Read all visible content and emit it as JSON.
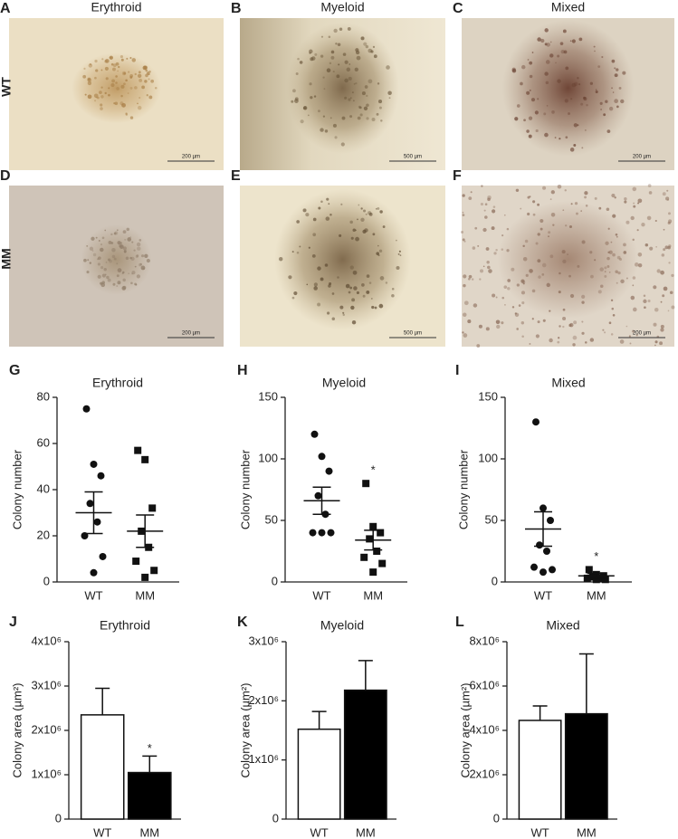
{
  "image_panels": {
    "columns": [
      "Erythroid",
      "Myeloid",
      "Mixed"
    ],
    "rows": [
      "WT",
      "MM"
    ],
    "panels": [
      {
        "letter": "A",
        "scale": "200 µm"
      },
      {
        "letter": "B",
        "scale": "500 µm"
      },
      {
        "letter": "C",
        "scale": "200 µm"
      },
      {
        "letter": "D",
        "scale": "200 µm"
      },
      {
        "letter": "E",
        "scale": "500 µm"
      },
      {
        "letter": "F",
        "scale": "200 µm"
      }
    ]
  },
  "chart_data": [
    {
      "type": "dot",
      "panel": "G",
      "title": "Erythroid",
      "ylabel": "Colony number",
      "categories": [
        "WT",
        "MM"
      ],
      "ylim": [
        0,
        80
      ],
      "yticks": [
        0,
        20,
        40,
        60,
        80
      ],
      "groups": [
        {
          "marker": "circle",
          "values": [
            75,
            51,
            46,
            34,
            26,
            20,
            11,
            4
          ],
          "mean": 30,
          "sem": 9
        },
        {
          "marker": "square",
          "values": [
            57,
            53,
            32,
            22,
            15,
            9,
            5,
            2
          ],
          "mean": 22,
          "sem": 7
        }
      ]
    },
    {
      "type": "dot",
      "panel": "H",
      "title": "Myeloid",
      "ylabel": "Colony number",
      "categories": [
        "WT",
        "MM"
      ],
      "ylim": [
        0,
        150
      ],
      "yticks": [
        0,
        50,
        100,
        150
      ],
      "groups": [
        {
          "marker": "circle",
          "values": [
            120,
            102,
            90,
            70,
            55,
            40,
            40,
            40
          ],
          "mean": 66,
          "sem": 11
        },
        {
          "marker": "square",
          "values": [
            80,
            45,
            40,
            35,
            25,
            20,
            15,
            8
          ],
          "mean": 34,
          "sem": 8,
          "annotation": "*"
        }
      ]
    },
    {
      "type": "dot",
      "panel": "I",
      "title": "Mixed",
      "ylabel": "Colony number",
      "categories": [
        "WT",
        "MM"
      ],
      "ylim": [
        0,
        150
      ],
      "yticks": [
        0,
        50,
        100,
        150
      ],
      "groups": [
        {
          "marker": "circle",
          "values": [
            130,
            60,
            50,
            30,
            25,
            12,
            10,
            8
          ],
          "mean": 43,
          "sem": 14
        },
        {
          "marker": "square",
          "values": [
            10,
            6,
            5,
            4,
            3,
            3,
            2,
            2
          ],
          "mean": 5,
          "sem": 2,
          "annotation": "*"
        }
      ]
    },
    {
      "type": "bar",
      "panel": "J",
      "title": "Erythroid",
      "ylabel": "Colony area (µm²)",
      "categories": [
        "WT",
        "MM"
      ],
      "values": [
        2350000,
        1050000
      ],
      "errors": [
        600000,
        370000
      ],
      "colors": [
        "#ffffff",
        "#000000"
      ],
      "annotations": [
        null,
        "*"
      ],
      "ylim": [
        0,
        4000000
      ],
      "yticks": [
        0,
        {
          "value": 1000000,
          "label": "1x10⁶"
        },
        {
          "value": 2000000,
          "label": "2x10⁶"
        },
        {
          "value": 3000000,
          "label": "3x10⁶"
        },
        {
          "value": 4000000,
          "label": "4x10⁶"
        }
      ]
    },
    {
      "type": "bar",
      "panel": "K",
      "title": "Myeloid",
      "ylabel": "Colony area (µm²)",
      "categories": [
        "WT",
        "MM"
      ],
      "values": [
        1520000,
        2180000
      ],
      "errors": [
        300000,
        500000
      ],
      "colors": [
        "#ffffff",
        "#000000"
      ],
      "ylim": [
        0,
        3000000
      ],
      "yticks": [
        0,
        {
          "value": 1000000,
          "label": "1x10⁶"
        },
        {
          "value": 2000000,
          "label": "2x10⁶"
        },
        {
          "value": 3000000,
          "label": "3x10⁶"
        }
      ]
    },
    {
      "type": "bar",
      "panel": "L",
      "title": "Mixed",
      "ylabel": "Colony area (µm²)",
      "categories": [
        "WT",
        "MM"
      ],
      "values": [
        4450000,
        4750000
      ],
      "errors": [
        650000,
        2700000
      ],
      "colors": [
        "#ffffff",
        "#000000"
      ],
      "ylim": [
        0,
        8000000
      ],
      "yticks": [
        0,
        {
          "value": 2000000,
          "label": "2x10⁶"
        },
        {
          "value": 4000000,
          "label": "4x10⁶"
        },
        {
          "value": 6000000,
          "label": "6x10⁶"
        },
        {
          "value": 8000000,
          "label": "8x10⁶"
        }
      ]
    }
  ]
}
